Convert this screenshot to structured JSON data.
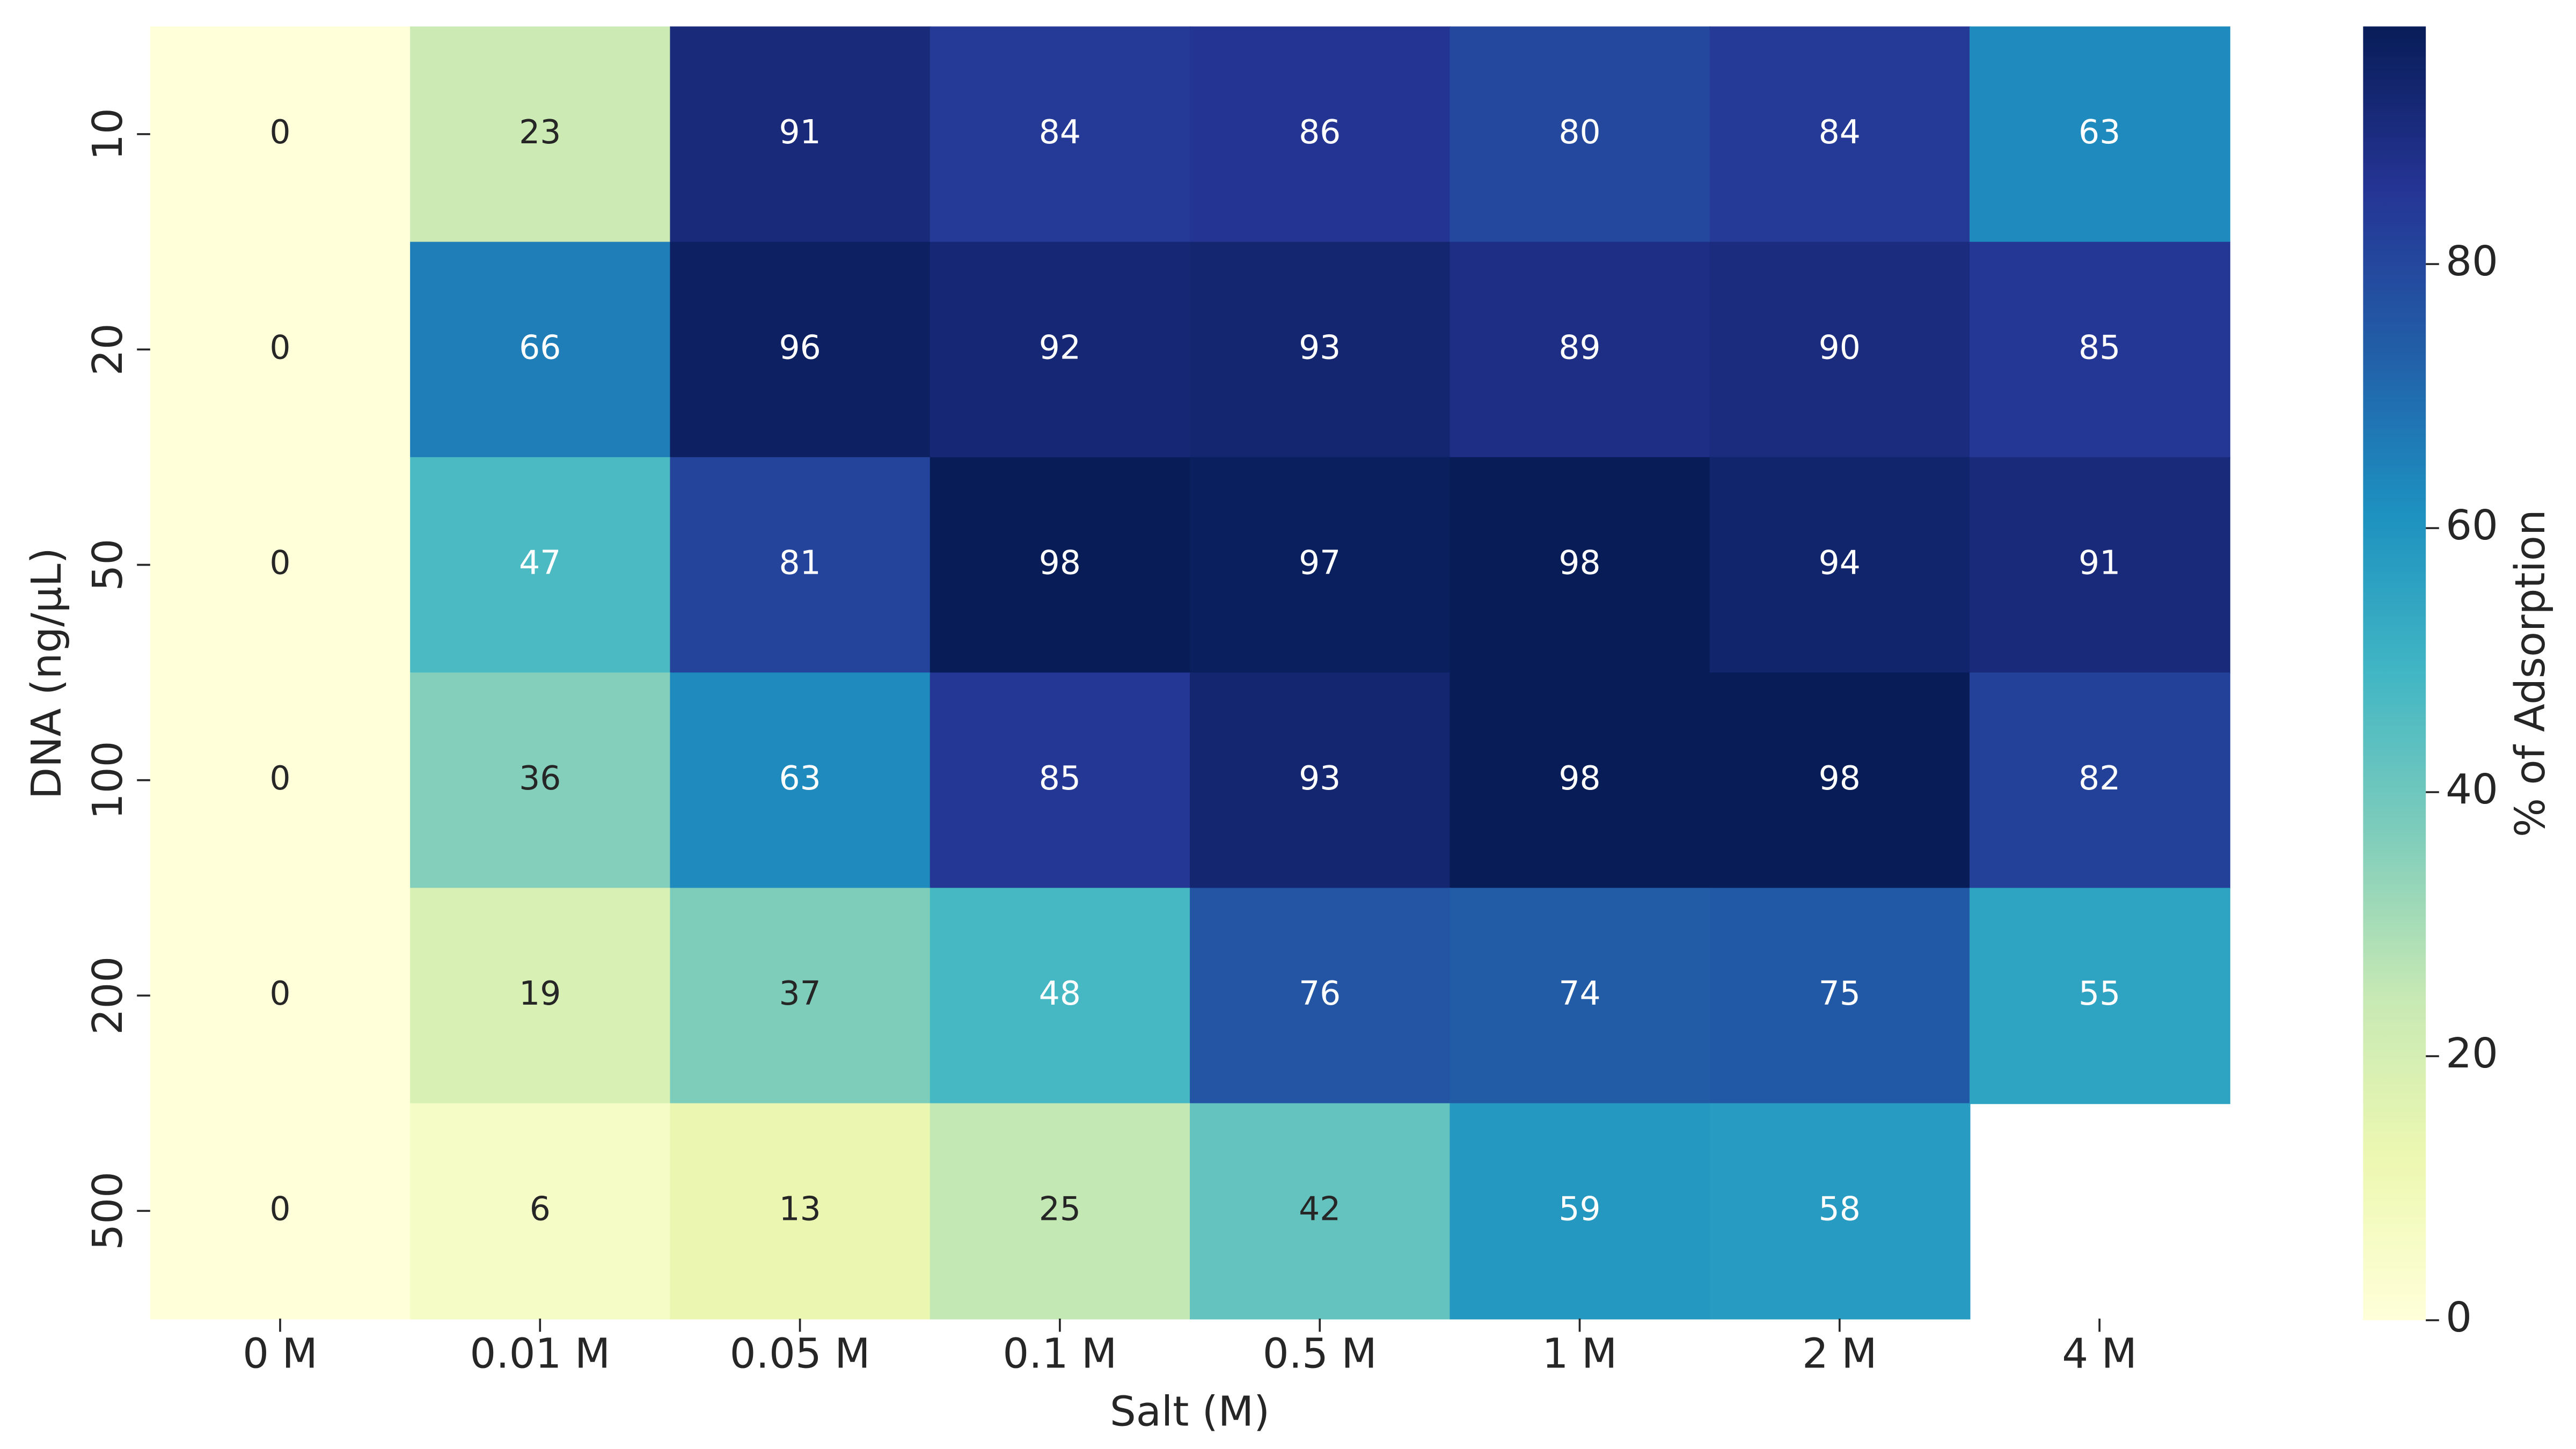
{
  "chart_data": {
    "type": "heatmap",
    "x_label": "Salt (M)",
    "y_label": "DNA (ng/µL)",
    "x_categories": [
      "0 M",
      "0.01 M",
      "0.05 M",
      "0.1 M",
      "0.5 M",
      "1 M",
      "2 M",
      "4 M"
    ],
    "y_categories": [
      "10",
      "20",
      "50",
      "100",
      "200",
      "500"
    ],
    "values": [
      [
        0,
        23,
        91,
        84,
        86,
        80,
        84,
        63
      ],
      [
        0,
        66,
        96,
        92,
        93,
        89,
        90,
        85
      ],
      [
        0,
        47,
        81,
        98,
        97,
        98,
        94,
        91
      ],
      [
        0,
        36,
        63,
        85,
        93,
        98,
        98,
        82
      ],
      [
        0,
        19,
        37,
        48,
        76,
        74,
        75,
        55
      ],
      [
        0,
        6,
        13,
        25,
        42,
        59,
        58,
        null
      ]
    ],
    "colormap": "YlGnBu",
    "colorbar_label": "% of Adsorption",
    "clim": [
      0,
      98
    ],
    "cticks": [
      0,
      20,
      40,
      60,
      80
    ]
  }
}
